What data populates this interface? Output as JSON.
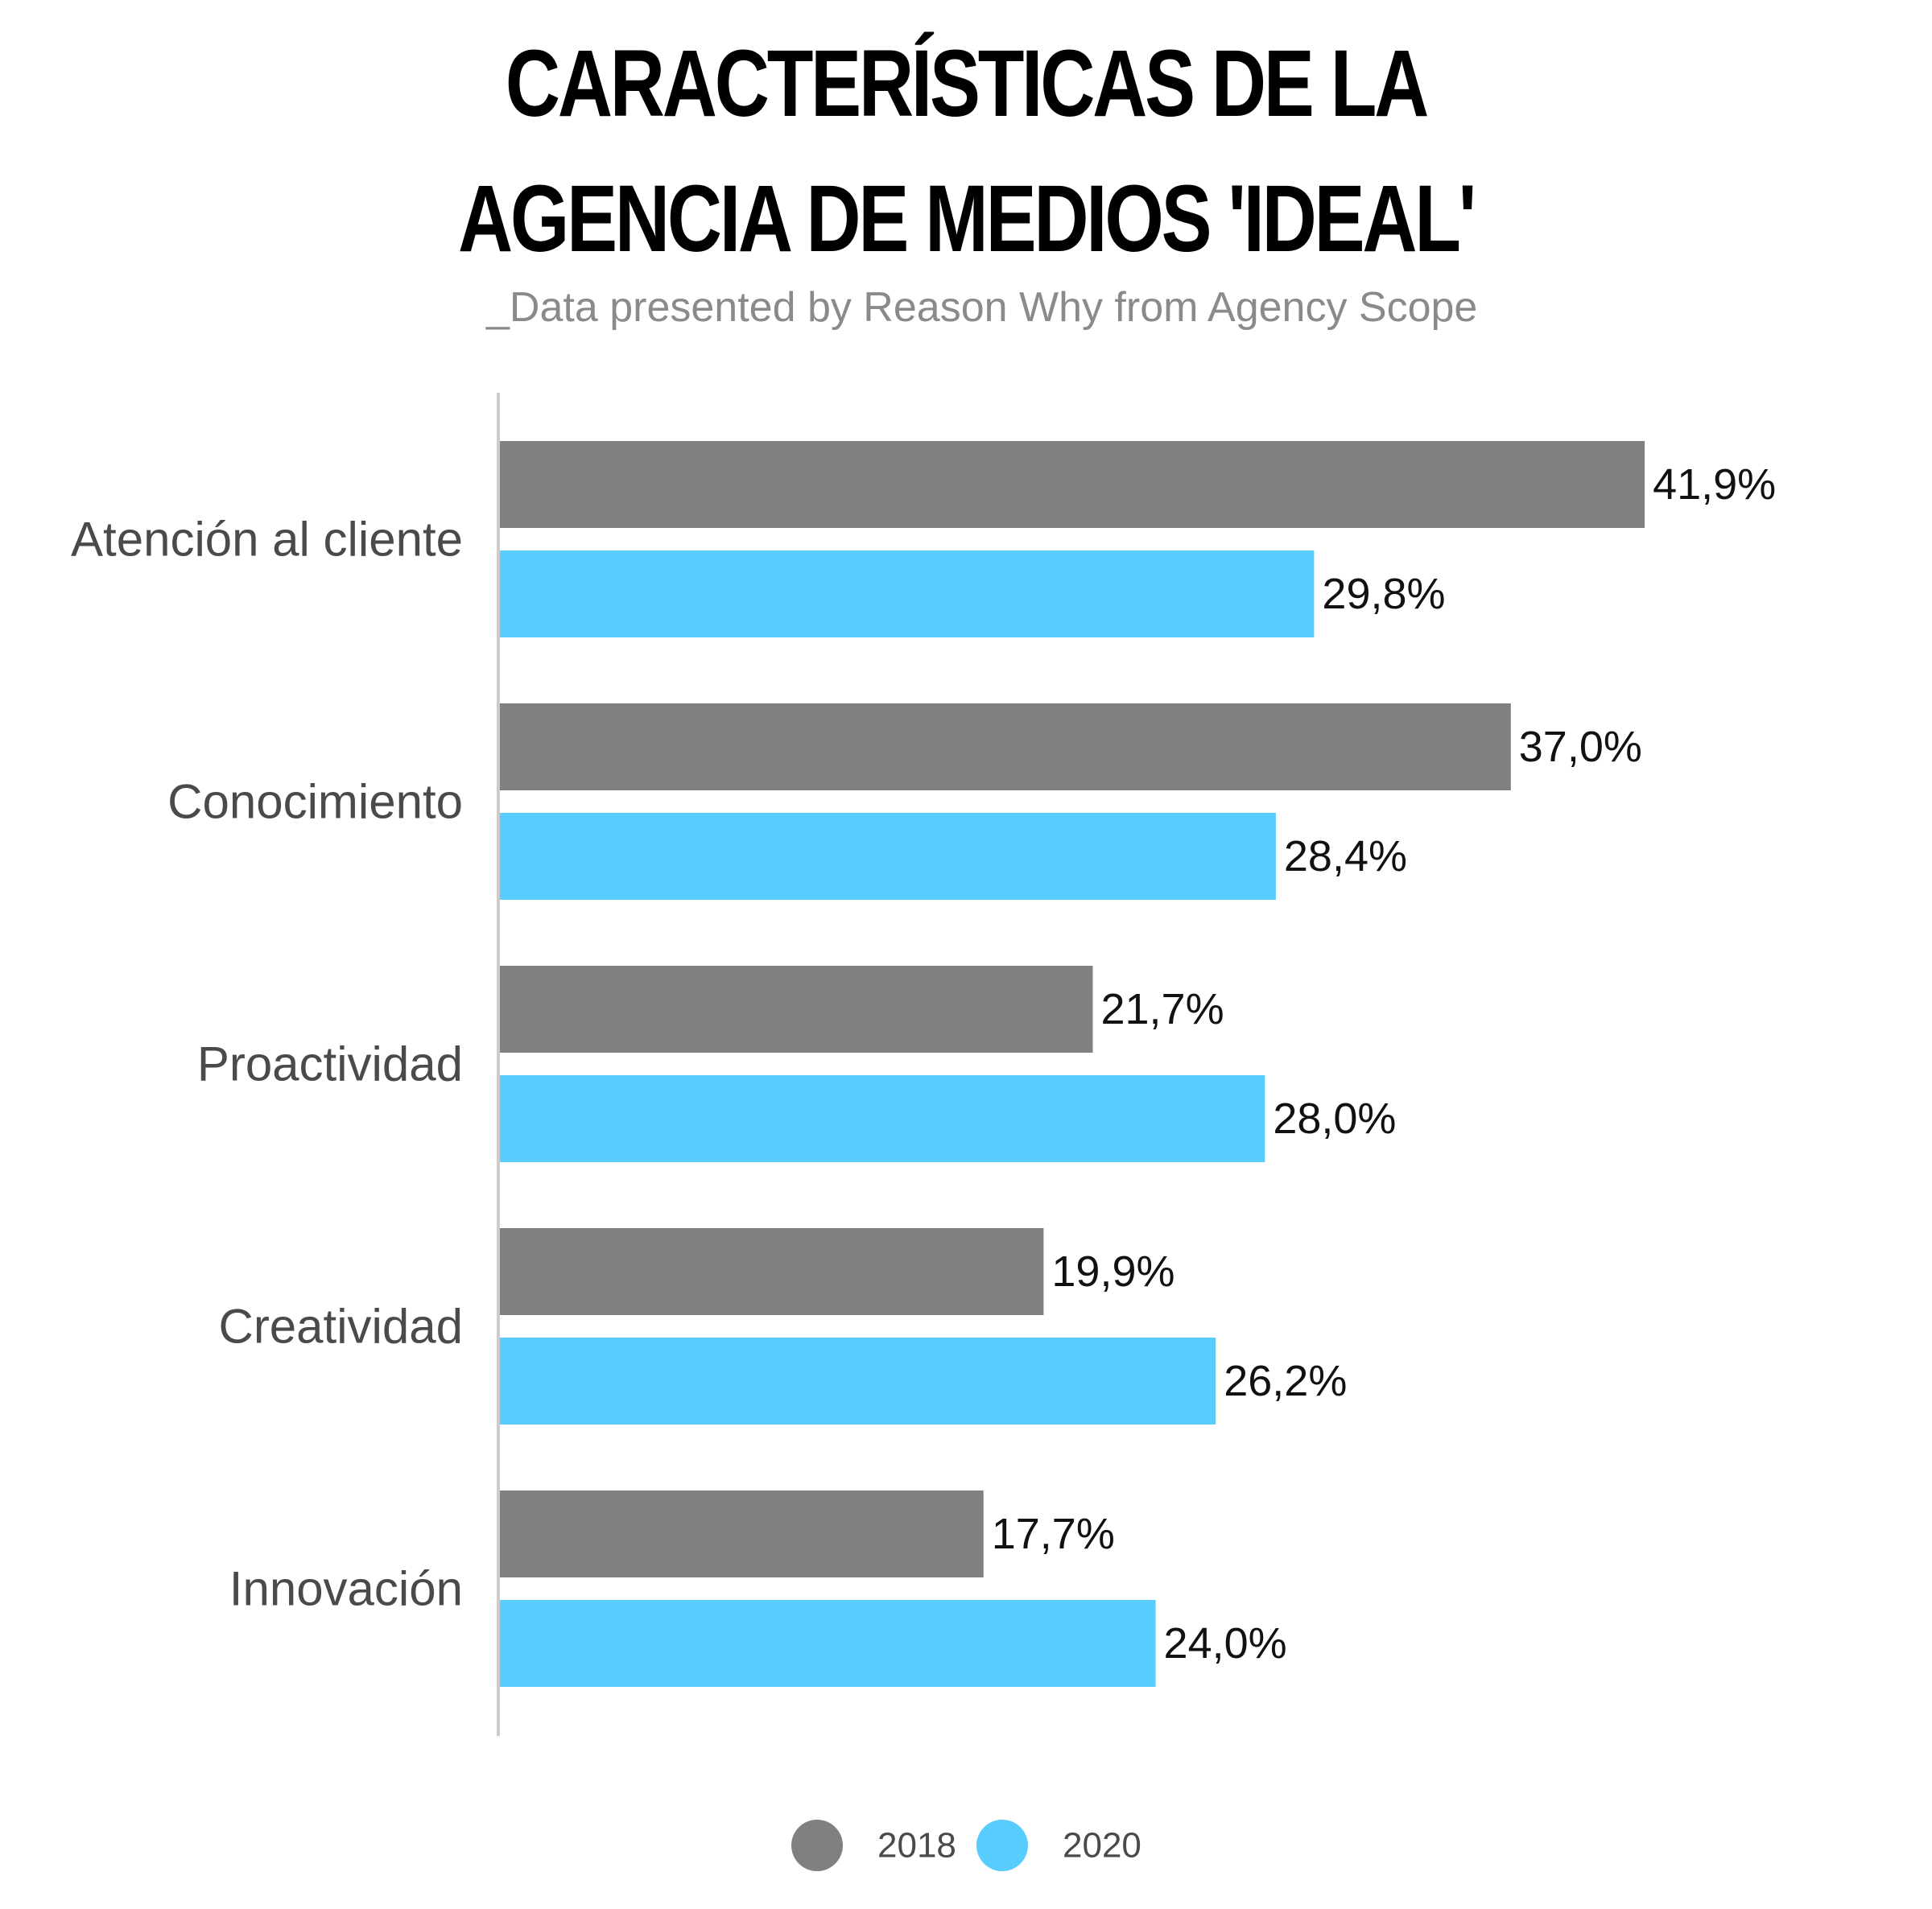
{
  "title_lines": [
    "CARACTERÍSTICAS DE LA",
    "AGENCIA DE MEDIOS 'IDEAL'"
  ],
  "subtitle": "_Data presented by Reason Why from Agency Scope",
  "chart_data": {
    "type": "bar",
    "orientation": "horizontal",
    "title": "CARACTERÍSTICAS DE LA AGENCIA DE MEDIOS 'IDEAL'",
    "subtitle": "_Data presented by Reason Why from Agency Scope",
    "categories": [
      "Atención al cliente",
      "Conocimiento",
      "Proactividad",
      "Creatividad",
      "Innovación"
    ],
    "series": [
      {
        "name": "2018",
        "color": "#808080",
        "values": [
          41.9,
          37.0,
          21.7,
          19.9,
          17.7
        ],
        "labels": [
          "41,9%",
          "37,0%",
          "21,7%",
          "19,9%",
          "17,7%"
        ]
      },
      {
        "name": "2020",
        "color": "#58ccfc",
        "values": [
          29.8,
          28.4,
          28.0,
          26.2,
          24.0
        ],
        "labels": [
          "29,8%",
          "28,4%",
          "28,0%",
          "26,2%",
          "24,0%"
        ]
      }
    ],
    "xlim": [
      0,
      50
    ],
    "grid": false,
    "legend_position": "bottom-center",
    "axis_color": "#cccccc"
  }
}
